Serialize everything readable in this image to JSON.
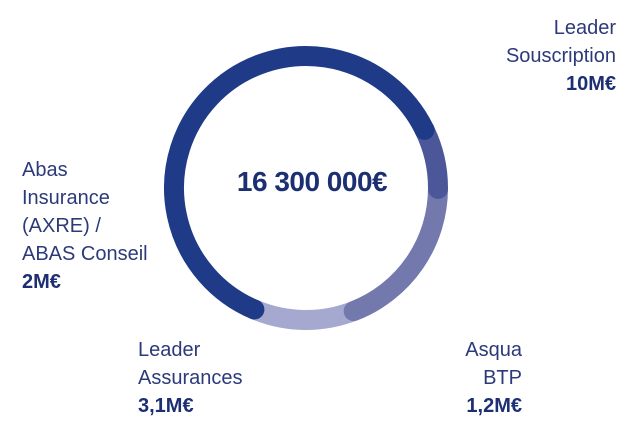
{
  "chart_data": {
    "type": "donut",
    "total_label": "16 300 000€",
    "unit": "M€",
    "slices": [
      {
        "name": "Leader\nSouscription",
        "value": 10,
        "value_label": "10M€",
        "color": "#1f3a86"
      },
      {
        "name": "Asqua\nBTP",
        "value": 1.2,
        "value_label": "1,2M€",
        "color": "#4b5799"
      },
      {
        "name": "Leader\nAssurances",
        "value": 3.1,
        "value_label": "3,1M€",
        "color": "#7378ad"
      },
      {
        "name": "Abas\nInsurance\n(AXRE) /\nABAS Conseil",
        "value": 2,
        "value_label": "2M€",
        "color": "#a6a9cf"
      }
    ]
  }
}
